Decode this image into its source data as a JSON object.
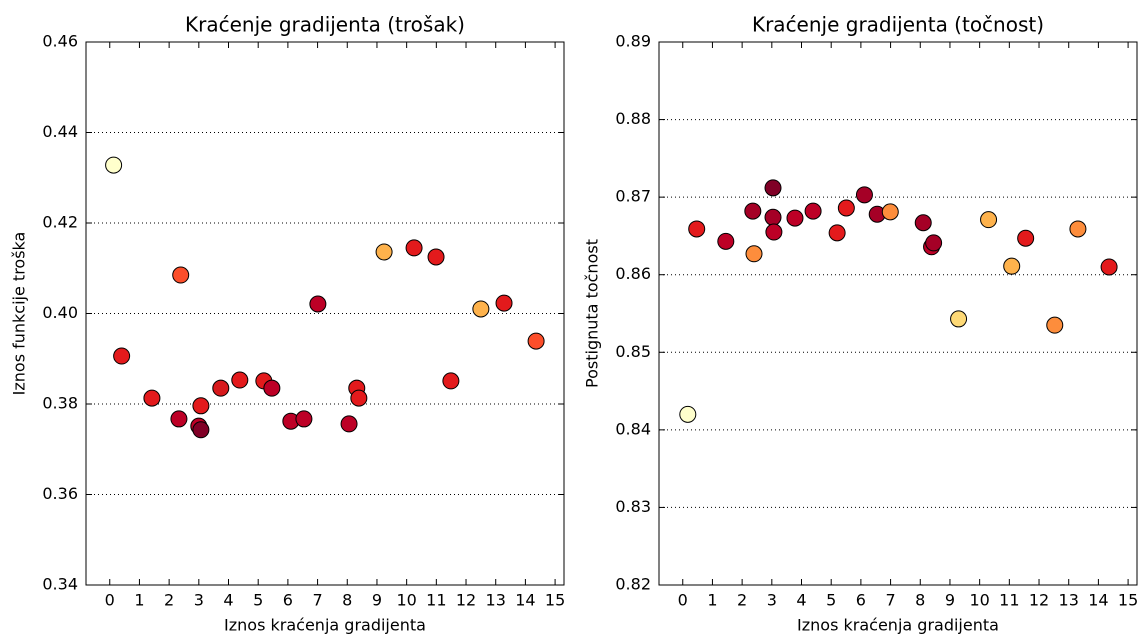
{
  "chart_data": [
    {
      "type": "scatter",
      "title": "Kraćenje gradijenta (trošak)",
      "x_label": "Iznos kraćenja gradijenta",
      "y_label": "Iznos funkcije troška",
      "x": [
        0.13,
        0.4,
        1.42,
        2.33,
        2.39,
        3.0,
        3.07,
        3.07,
        3.74,
        4.38,
        5.19,
        5.46,
        6.1,
        6.54,
        7.01,
        8.06,
        8.32,
        8.39,
        9.24,
        10.25,
        10.99,
        11.49,
        12.5,
        13.28,
        14.36
      ],
      "values": [
        0.4328,
        0.3906,
        0.3813,
        0.3767,
        0.4085,
        0.3751,
        0.3743,
        0.3796,
        0.3835,
        0.3853,
        0.3851,
        0.3835,
        0.3762,
        0.3767,
        0.4021,
        0.3756,
        0.3835,
        0.3813,
        0.4136,
        0.4145,
        0.4125,
        0.3851,
        0.401,
        0.4023,
        0.3939
      ],
      "colors": [
        "#ffffcc",
        "#e31a1c",
        "#e31a1c",
        "#bd0026",
        "#fc4e2a",
        "#bd0026",
        "#800026",
        "#e31a1c",
        "#d7191c",
        "#e31a1c",
        "#e31a1c",
        "#bd0026",
        "#bd0026",
        "#bd0026",
        "#bd0026",
        "#bd0026",
        "#e31a1c",
        "#e31a1c",
        "#feb24c",
        "#e31a1c",
        "#e31a1c",
        "#e31a1c",
        "#feb24c",
        "#e31a1c",
        "#fc4e2a"
      ],
      "xlim": [
        -0.8,
        15.3
      ],
      "ylim": [
        0.34,
        0.46
      ],
      "xticks": [
        0,
        1,
        2,
        3,
        4,
        5,
        6,
        7,
        8,
        9,
        10,
        11,
        12,
        13,
        14,
        15
      ],
      "yticks": [
        0.34,
        0.36,
        0.38,
        {
          "value": 0.4,
          "label": "0.40"
        },
        0.42,
        0.44,
        0.46
      ],
      "grid": true
    },
    {
      "type": "scatter",
      "title": "Kraćenje gradijenta (točnost)",
      "x_label": "Iznos kraćenja gradijenta",
      "y_label": "Postignuta točnost",
      "x": [
        0.17,
        0.47,
        1.45,
        2.36,
        2.4,
        3.04,
        3.04,
        3.07,
        3.78,
        4.39,
        5.2,
        5.51,
        6.12,
        6.55,
        6.99,
        8.1,
        8.38,
        8.45,
        9.29,
        10.3,
        11.08,
        11.55,
        12.53,
        13.31,
        14.36
      ],
      "values": [
        0.842,
        0.8659,
        0.8643,
        0.8682,
        0.8627,
        0.8712,
        0.8674,
        0.8655,
        0.8673,
        0.8682,
        0.8654,
        0.8686,
        0.8703,
        0.8678,
        0.8681,
        0.8667,
        0.8636,
        0.8641,
        0.8543,
        0.8671,
        0.8611,
        0.8647,
        0.8535,
        0.8659,
        0.861
      ],
      "colors": [
        "#ffffcc",
        "#e31a1c",
        "#bd0026",
        "#a50026",
        "#fd8d3c",
        "#800026",
        "#a50026",
        "#bd0026",
        "#bd0026",
        "#bd0026",
        "#e31a1c",
        "#e31a1c",
        "#a50026",
        "#a50026",
        "#fd8d3c",
        "#a50026",
        "#bd0026",
        "#a50026",
        "#fed976",
        "#feb24c",
        "#feb24c",
        "#e31a1c",
        "#fd8d3c",
        "#fd8d3c",
        "#e31a1c"
      ],
      "xlim": [
        -0.8,
        15.3
      ],
      "ylim": [
        0.82,
        0.89
      ],
      "xticks": [
        0,
        1,
        2,
        3,
        4,
        5,
        6,
        7,
        8,
        9,
        10,
        11,
        12,
        13,
        14,
        15
      ],
      "yticks": [
        0.82,
        0.83,
        0.84,
        0.85,
        0.86,
        0.87,
        0.88,
        0.89
      ],
      "grid": true
    }
  ]
}
